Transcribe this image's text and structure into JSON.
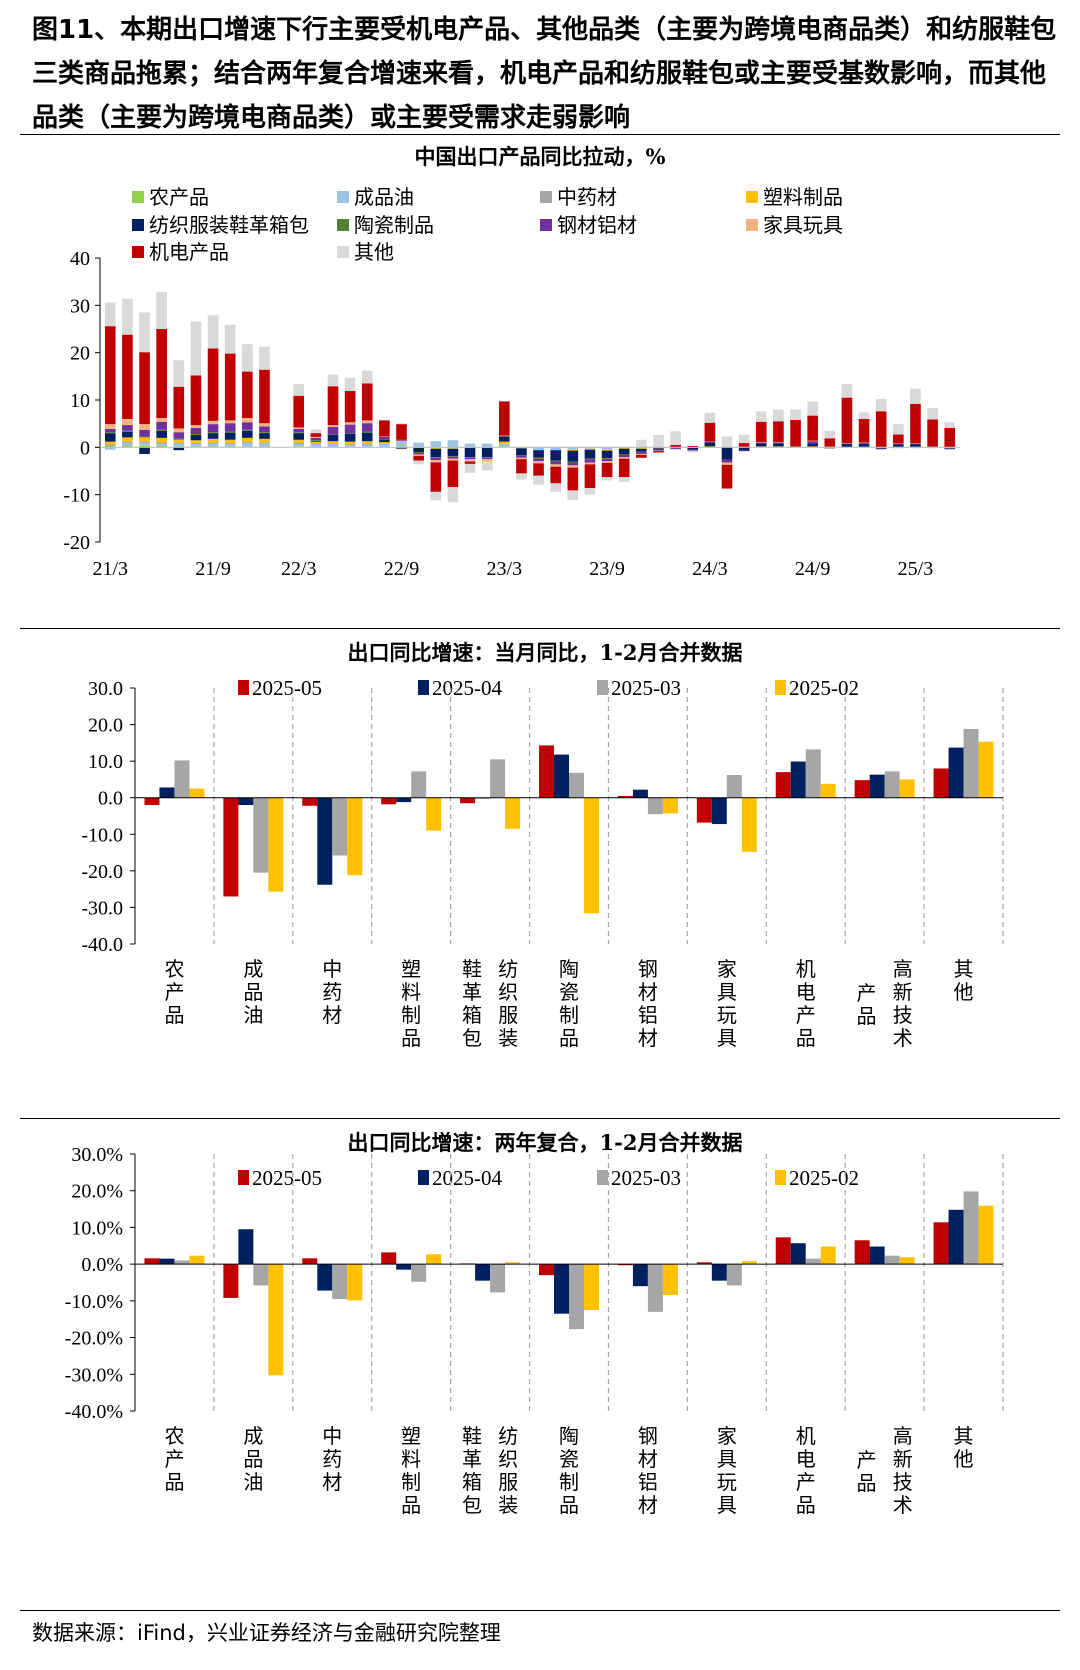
{
  "caption": "图11、本期出口增速下行主要受机电产品、其他品类（主要为跨境电商品类）和纺服鞋包三类商品拖累；结合两年复合增速来看，机电产品和纺服鞋包或主要受基数影响，而其他品类（主要为跨境电商品类）或主要受需求走弱影响",
  "source": "数据来源：iFind，兴业证券经济与金融研究院整理",
  "chart_data": [
    {
      "type": "bar",
      "stacked": true,
      "title": "中国出口产品同比拉动，%",
      "ylim": [
        -20,
        40
      ],
      "yticks": [
        -20,
        -10,
        0,
        10,
        20,
        30,
        40
      ],
      "x_tick_labels": [
        "21/3",
        "21/9",
        "22/3",
        "22/9",
        "23/3",
        "23/9",
        "24/3",
        "24/9",
        "25/3"
      ],
      "colors": [
        "#92d050",
        "#9dc3e6",
        "#a6a6a6",
        "#ffc000",
        "#002060",
        "#548235",
        "#7030a0",
        "#f4b183",
        "#c00000",
        "#d9d9d9"
      ],
      "legend": [
        "农产品",
        "成品油",
        "中药材",
        "塑料制品",
        "纺织服装鞋革箱包",
        "陶瓷制品",
        "钢材铝材",
        "家具玩具",
        "机电产品",
        "其他"
      ],
      "categories": [
        "21/3",
        "21/4",
        "21/5",
        "21/6",
        "21/7",
        "21/8",
        "21/9",
        "21/10",
        "21/11",
        "21/12",
        "22/3",
        "22/4",
        "22/5",
        "22/6",
        "22/7",
        "22/8",
        "22/9",
        "22/10",
        "22/11",
        "22/12",
        "23/1",
        "23/2",
        "23/3",
        "23/4",
        "23/5",
        "23/6",
        "23/7",
        "23/8",
        "23/9",
        "23/10",
        "23/11",
        "23/12",
        "24/1",
        "24/2",
        "24/3",
        "24/4",
        "24/5",
        "24/6",
        "24/7",
        "24/8",
        "24/9",
        "24/10",
        "24/11",
        "24/12",
        "25/1",
        "25/2",
        "25/3",
        "25/4",
        "25/5"
      ],
      "series": [
        {
          "name": "农产品",
          "values": [
            0.3,
            0.4,
            0.3,
            0.3,
            0.2,
            0.2,
            0.2,
            0.2,
            0.2,
            0.2,
            0.2,
            0.1,
            0.1,
            0.1,
            0.1,
            0.0,
            0.0,
            0.0,
            -0.1,
            -0.2,
            0.0,
            0.0,
            0.1,
            0.0,
            -0.1,
            -0.1,
            -0.1,
            -0.1,
            -0.1,
            0.0,
            0.0,
            0.0,
            0.0,
            0.0,
            0.0,
            0.0,
            0.0,
            0.0,
            0.0,
            0.0,
            0.0,
            0.0,
            0.0,
            0.0,
            0.0,
            0.0,
            0.0,
            0.0,
            0.0
          ]
        },
        {
          "name": "成品油",
          "values": [
            -0.5,
            0.5,
            0.6,
            0.4,
            0.6,
            0.5,
            0.6,
            0.5,
            0.7,
            0.6,
            0.5,
            0.6,
            0.5,
            0.4,
            0.5,
            0.8,
            1.2,
            1.0,
            1.3,
            1.5,
            0.8,
            0.8,
            0.6,
            0.0,
            -0.3,
            -0.3,
            -0.3,
            -0.2,
            -0.3,
            -0.1,
            -0.2,
            -0.2,
            0.0,
            -0.1,
            -0.1,
            0.0,
            0.0,
            0.0,
            0.0,
            -0.1,
            0.0,
            -0.1,
            0.0,
            0.0,
            -0.1,
            -0.2,
            -0.2,
            -0.2,
            -0.2
          ]
        },
        {
          "name": "中药材",
          "values": [
            0.3,
            0.3,
            0.2,
            0.3,
            0.2,
            0.2,
            0.2,
            0.2,
            0.2,
            0.2,
            0.3,
            0.1,
            0.1,
            0.1,
            0.1,
            0.0,
            0.0,
            0.0,
            0.0,
            0.0,
            0.0,
            0.0,
            0.0,
            0.0,
            0.0,
            0.0,
            0.0,
            0.0,
            0.0,
            0.0,
            0.0,
            0.0,
            0.0,
            0.0,
            0.0,
            0.0,
            0.0,
            0.0,
            0.0,
            0.0,
            0.0,
            0.0,
            0.0,
            0.0,
            0.0,
            0.0,
            0.0,
            0.0,
            0.0
          ]
        },
        {
          "name": "塑料制品",
          "values": [
            0.6,
            0.9,
            1.0,
            1.0,
            0.6,
            0.6,
            0.8,
            0.7,
            0.9,
            0.8,
            0.6,
            0.4,
            0.6,
            0.6,
            0.6,
            0.3,
            0.2,
            -0.1,
            -0.2,
            -0.1,
            -0.1,
            -0.1,
            0.5,
            -0.2,
            -0.2,
            -0.2,
            -0.3,
            -0.2,
            -0.3,
            -0.2,
            -0.1,
            0.0,
            0.1,
            0.0,
            0.2,
            0.0,
            0.1,
            0.2,
            0.2,
            0.1,
            0.2,
            0.1,
            0.1,
            0.1,
            0.0,
            0.1,
            0.1,
            0.1,
            0.0
          ]
        },
        {
          "name": "纺织服装鞋革箱包",
          "values": [
            1.8,
            1.2,
            -1.4,
            1.5,
            -0.6,
            1.1,
            1.2,
            1.5,
            1.5,
            1.2,
            1.4,
            0.2,
            1.3,
            1.7,
            1.8,
            0.5,
            -0.3,
            -0.9,
            -1.8,
            -1.6,
            -2.0,
            -2.0,
            1.0,
            -1.5,
            -1.6,
            -2.2,
            -2.3,
            -1.9,
            -1.6,
            -1.2,
            -0.6,
            -0.3,
            -0.2,
            -0.4,
            0.9,
            -2.6,
            -0.7,
            0.6,
            0.6,
            0.0,
            0.6,
            -0.1,
            0.6,
            0.6,
            -0.2,
            0.5,
            0.6,
            0.0,
            -0.2
          ]
        },
        {
          "name": "陶瓷制品",
          "values": [
            0.2,
            0.2,
            0.2,
            0.2,
            0.2,
            0.2,
            0.2,
            0.2,
            0.2,
            0.2,
            0.2,
            0.1,
            0.1,
            0.1,
            0.2,
            0.0,
            0.0,
            -0.1,
            -0.1,
            -0.1,
            -0.1,
            -0.1,
            0.1,
            -0.1,
            -0.2,
            -0.2,
            -0.2,
            -0.1,
            -0.1,
            -0.1,
            -0.1,
            0.0,
            0.0,
            0.0,
            0.0,
            0.0,
            0.0,
            0.0,
            0.0,
            0.0,
            0.0,
            0.0,
            0.0,
            0.0,
            0.0,
            0.0,
            0.0,
            0.0,
            0.0
          ]
        },
        {
          "name": "钢材铝材",
          "values": [
            0.7,
            1.2,
            1.4,
            1.7,
            1.4,
            1.3,
            1.7,
            1.8,
            1.6,
            1.2,
            0.7,
            0.5,
            1.6,
            1.8,
            1.8,
            0.6,
            0.2,
            -0.4,
            -0.5,
            -0.4,
            -0.3,
            -0.3,
            0.1,
            -0.4,
            -0.5,
            -0.6,
            -0.6,
            -0.7,
            -0.5,
            -0.5,
            -0.4,
            -0.2,
            -0.2,
            -0.2,
            0.0,
            -0.6,
            -0.1,
            0.2,
            0.2,
            0.1,
            0.5,
            0.1,
            0.1,
            0.2,
            -0.1,
            0.1,
            0.1,
            0.1,
            0.0
          ]
        },
        {
          "name": "家具玩具",
          "values": [
            1.0,
            1.3,
            1.2,
            0.8,
            0.8,
            0.6,
            0.7,
            0.6,
            0.9,
            0.7,
            0.3,
            0.2,
            0.4,
            0.5,
            0.6,
            0.1,
            -0.1,
            -0.3,
            -0.5,
            -0.4,
            -0.5,
            -0.5,
            0.1,
            -0.3,
            -0.5,
            -0.5,
            -0.5,
            -0.4,
            -0.4,
            -0.3,
            -0.2,
            -0.1,
            0.0,
            -0.1,
            0.1,
            -0.5,
            0.0,
            0.1,
            0.1,
            0.0,
            0.1,
            0.0,
            0.1,
            0.1,
            0.0,
            0.1,
            0.1,
            0.0,
            0.0
          ]
        },
        {
          "name": "机电产品",
          "values": [
            20.7,
            17.8,
            15.2,
            18.8,
            8.8,
            10.5,
            15.3,
            14.1,
            9.8,
            11.3,
            6.7,
            0.8,
            8.2,
            6.6,
            7.8,
            3.4,
            3.3,
            -1.0,
            -6.2,
            -5.6,
            -0.5,
            0.0,
            7.2,
            -3.0,
            -2.6,
            -3.5,
            -4.8,
            -5.0,
            -3.0,
            -3.9,
            -0.6,
            -0.3,
            0.4,
            0.3,
            4.0,
            -5.0,
            0.8,
            4.3,
            4.4,
            5.6,
            5.3,
            1.7,
            9.6,
            5.0,
            7.6,
            1.9,
            8.3,
            5.7,
            4.1
          ]
        },
        {
          "name": "其他",
          "values": [
            5.0,
            7.6,
            8.4,
            7.8,
            5.6,
            11.4,
            7.0,
            6.1,
            5.8,
            4.9,
            2.5,
            0.8,
            2.5,
            2.8,
            2.7,
            0.0,
            0.2,
            -0.8,
            -1.8,
            -3.2,
            -1.9,
            -1.9,
            0.1,
            -1.3,
            -1.9,
            -1.8,
            -2.0,
            -1.4,
            -0.7,
            -1.0,
            1.6,
            2.6,
            2.9,
            -0.3,
            2.1,
            2.3,
            1.8,
            2.2,
            2.5,
            2.2,
            3.0,
            1.6,
            2.9,
            1.4,
            2.6,
            2.2,
            3.2,
            2.4,
            1.2
          ]
        }
      ]
    },
    {
      "type": "bar",
      "title": "出口同比增速：当月同比，1-2月合并数据",
      "ylim": [
        -40,
        30
      ],
      "yticks": [
        "-40.0",
        "-30.0",
        "-20.0",
        "-10.0",
        "0.0",
        "10.0",
        "20.0",
        "30.0"
      ],
      "categories": [
        "农产品",
        "成品油",
        "中药材",
        "塑料制品",
        "纺织服装 鞋革箱包",
        "陶瓷制品",
        "钢材铝材",
        "家具玩具",
        "机电产品",
        "高新技术 产品",
        "其他"
      ],
      "category_columns": [
        [
          "农产品"
        ],
        [
          "成品油"
        ],
        [
          "中药材"
        ],
        [
          "塑料制品"
        ],
        [
          "纺织服装",
          "鞋革箱包"
        ],
        [
          "陶瓷制品"
        ],
        [
          "钢材铝材"
        ],
        [
          "家具玩具"
        ],
        [
          "机电产品"
        ],
        [
          "高新技术",
          "产品"
        ],
        [
          "其他"
        ]
      ],
      "series": [
        {
          "name": "2025-05",
          "color": "#c00000",
          "values": [
            -2.0,
            -27.0,
            -2.2,
            -1.8,
            -1.5,
            14.3,
            0.5,
            -6.8,
            7.0,
            4.8,
            8.0
          ]
        },
        {
          "name": "2025-04",
          "color": "#002060",
          "values": [
            2.8,
            -2.0,
            -23.8,
            -1.2,
            0.0,
            11.8,
            2.2,
            -7.2,
            9.9,
            6.3,
            13.7
          ]
        },
        {
          "name": "2025-03",
          "color": "#a6a6a6",
          "values": [
            10.2,
            -20.5,
            -15.8,
            7.2,
            10.5,
            6.8,
            -4.5,
            6.2,
            13.2,
            7.2,
            18.8
          ]
        },
        {
          "name": "2025-02",
          "color": "#ffc000",
          "values": [
            2.5,
            -25.7,
            -21.2,
            -9.0,
            -8.5,
            -31.6,
            -4.3,
            -14.8,
            3.8,
            5.0,
            15.3
          ]
        }
      ]
    },
    {
      "type": "bar",
      "title": "出口同比增速：两年复合，1-2月合并数据",
      "ylim": [
        -40,
        30
      ],
      "yticks": [
        "-40.0%",
        "-30.0%",
        "-20.0%",
        "-10.0%",
        "0.0%",
        "10.0%",
        "20.0%",
        "30.0%"
      ],
      "categories": [
        "农产品",
        "成品油",
        "中药材",
        "塑料制品",
        "纺织服装 鞋革箱包",
        "陶瓷制品",
        "钢材铝材",
        "家具玩具",
        "机电产品",
        "高新技术 产品",
        "其他"
      ],
      "category_columns": [
        [
          "农产品"
        ],
        [
          "成品油"
        ],
        [
          "中药材"
        ],
        [
          "塑料制品"
        ],
        [
          "纺织服装",
          "鞋革箱包"
        ],
        [
          "陶瓷制品"
        ],
        [
          "钢材铝材"
        ],
        [
          "家具玩具"
        ],
        [
          "机电产品"
        ],
        [
          "高新技术",
          "产品"
        ],
        [
          "其他"
        ]
      ],
      "series": [
        {
          "name": "2025-05",
          "color": "#c00000",
          "values": [
            1.6,
            -9.2,
            1.6,
            3.2,
            0.2,
            -3.0,
            -0.3,
            0.5,
            7.3,
            6.5,
            11.4
          ]
        },
        {
          "name": "2025-04",
          "color": "#002060",
          "values": [
            1.5,
            9.5,
            -7.2,
            -1.5,
            -4.5,
            -13.5,
            -6.0,
            -4.5,
            5.7,
            4.8,
            14.8
          ]
        },
        {
          "name": "2025-03",
          "color": "#a6a6a6",
          "values": [
            1.0,
            -5.8,
            -9.5,
            -4.8,
            -7.7,
            -17.7,
            -13.0,
            -5.8,
            1.5,
            2.3,
            19.8
          ]
        },
        {
          "name": "2025-02",
          "color": "#ffc000",
          "values": [
            2.3,
            -30.3,
            -9.9,
            2.7,
            0.5,
            -12.5,
            -8.4,
            0.8,
            4.8,
            1.9,
            15.9
          ]
        }
      ]
    }
  ]
}
